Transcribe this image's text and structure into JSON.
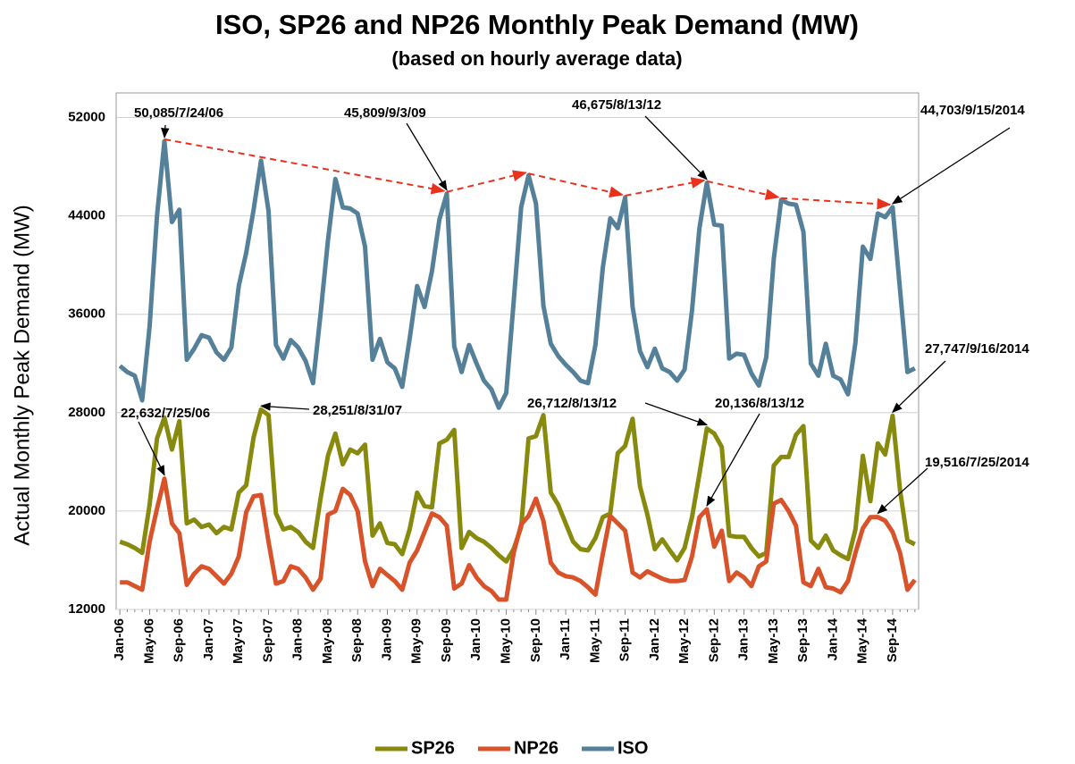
{
  "chart_data": {
    "type": "line",
    "title": "ISO, SP26 and NP26 Monthly Peak Demand (MW)",
    "subtitle": "(based on hourly average data)",
    "y_label": "Actual Monthly Peak Demand (MW)",
    "categories": [
      "Jan-06",
      null,
      null,
      null,
      "May-06",
      null,
      null,
      null,
      "Sep-06",
      null,
      null,
      null,
      "Jan-07",
      null,
      null,
      null,
      "May-07",
      null,
      null,
      null,
      "Sep-07",
      null,
      null,
      null,
      "Jan-08",
      null,
      null,
      null,
      "May-08",
      null,
      null,
      null,
      "Sep-08",
      null,
      null,
      null,
      "Jan-09",
      null,
      null,
      null,
      "May-09",
      null,
      null,
      null,
      "Sep-09",
      null,
      null,
      null,
      "Jan-10",
      null,
      null,
      null,
      "May-10",
      null,
      null,
      null,
      "Sep-10",
      null,
      null,
      null,
      "Jan-11",
      null,
      null,
      null,
      "May-11",
      null,
      null,
      null,
      "Sep-11",
      null,
      null,
      null,
      "Jan-12",
      null,
      null,
      null,
      "May-12",
      null,
      null,
      null,
      "Sep-12",
      null,
      null,
      null,
      "Jan-13",
      null,
      null,
      null,
      "May-13",
      null,
      null,
      null,
      "Sep-13",
      null,
      null,
      null,
      "Jan-14",
      null,
      null,
      null,
      "May-14",
      null,
      null,
      null,
      "Sep-14",
      null,
      null,
      null
    ],
    "series": [
      {
        "name": "SP26",
        "color": "#878a0c",
        "values": [
          17500,
          17300,
          17000,
          16600,
          20500,
          25900,
          27600,
          25000,
          27300,
          19000,
          19300,
          18700,
          18900,
          18200,
          18700,
          18500,
          21500,
          22100,
          26000,
          28251,
          27800,
          19800,
          18500,
          18700,
          18300,
          17500,
          17000,
          21000,
          24500,
          26300,
          23800,
          25000,
          24700,
          25400,
          18000,
          19000,
          17400,
          17300,
          16500,
          18500,
          21500,
          20400,
          20300,
          25500,
          25800,
          26600,
          17000,
          18300,
          17800,
          17500,
          17000,
          16400,
          15900,
          16900,
          18700,
          25900,
          26100,
          27800,
          21500,
          20500,
          19000,
          17500,
          16900,
          16800,
          17800,
          19500,
          19800,
          24700,
          25300,
          27500,
          22000,
          19700,
          16900,
          17700,
          16800,
          16000,
          17000,
          19500,
          23000,
          26712,
          26300,
          25200,
          18000,
          17900,
          17900,
          17000,
          16300,
          16600,
          23700,
          24400,
          24400,
          26200,
          26900,
          17600,
          17000,
          18000,
          16800,
          16400,
          16100,
          18500,
          24500,
          20800,
          25500,
          24600,
          27747,
          21700,
          17600,
          17300
        ]
      },
      {
        "name": "NP26",
        "color": "#d8532a",
        "values": [
          14200,
          14200,
          13900,
          13600,
          17500,
          20200,
          22632,
          19000,
          18200,
          14000,
          14900,
          15500,
          15300,
          14700,
          14100,
          14900,
          16300,
          19900,
          21200,
          21300,
          17500,
          14100,
          14300,
          15500,
          15300,
          14600,
          13600,
          14500,
          19700,
          20000,
          21800,
          21300,
          20000,
          15900,
          13900,
          15300,
          14800,
          14300,
          13600,
          15800,
          16800,
          18300,
          19800,
          19500,
          18800,
          13700,
          14100,
          15600,
          14600,
          13900,
          13500,
          12800,
          12800,
          16600,
          18900,
          19600,
          21000,
          19200,
          15800,
          15000,
          14700,
          14600,
          14300,
          13800,
          13200,
          16500,
          19600,
          19000,
          18400,
          15000,
          14600,
          15100,
          14800,
          14500,
          14300,
          14300,
          14400,
          16300,
          19500,
          20136,
          17100,
          18400,
          14300,
          15000,
          14600,
          13900,
          15500,
          15900,
          20600,
          20900,
          20000,
          18800,
          14200,
          13900,
          15300,
          13800,
          13700,
          13400,
          14300,
          16600,
          18600,
          19500,
          19516,
          19200,
          18300,
          16600,
          13600,
          14400
        ]
      },
      {
        "name": "ISO",
        "color": "#55809a",
        "values": [
          31800,
          31300,
          31000,
          29000,
          35000,
          44000,
          50085,
          43500,
          44500,
          32300,
          33200,
          34300,
          34100,
          32900,
          32300,
          33300,
          38300,
          41000,
          44500,
          48500,
          44400,
          33500,
          32400,
          33900,
          33300,
          32200,
          30400,
          36000,
          42000,
          47000,
          44700,
          44600,
          44200,
          41500,
          32300,
          34000,
          32100,
          31600,
          30100,
          34000,
          38300,
          36600,
          39500,
          43700,
          45809,
          33400,
          31300,
          33500,
          32000,
          30600,
          29900,
          28400,
          29600,
          37000,
          44700,
          47300,
          45000,
          36700,
          33600,
          32600,
          31900,
          31300,
          30600,
          30400,
          33500,
          39800,
          43800,
          43000,
          45500,
          36600,
          33000,
          31700,
          33200,
          31600,
          31300,
          30600,
          31500,
          36300,
          43000,
          46675,
          43300,
          43200,
          32400,
          32800,
          32700,
          31200,
          30200,
          32500,
          40500,
          45300,
          45000,
          44900,
          42700,
          32000,
          31000,
          33600,
          31000,
          30700,
          29500,
          33700,
          41500,
          40500,
          44200,
          43900,
          44703,
          38000,
          31300,
          31600
        ]
      }
    ],
    "annotations": [
      "50,085/7/24/06",
      "45,809/9/3/09",
      "46,675/8/13/12",
      "44,703/9/15/2014",
      "22,632/7/25/06",
      "28,251/8/31/07",
      "26,712/8/13/12",
      "20,136/8/13/12",
      "27,747/9/16/2014",
      "19,516/7/25/2014"
    ],
    "ylim": [
      12000,
      54000
    ],
    "yticks": [
      12000,
      20000,
      28000,
      36000,
      44000,
      52000
    ],
    "grid": true,
    "legend": "bottom"
  }
}
